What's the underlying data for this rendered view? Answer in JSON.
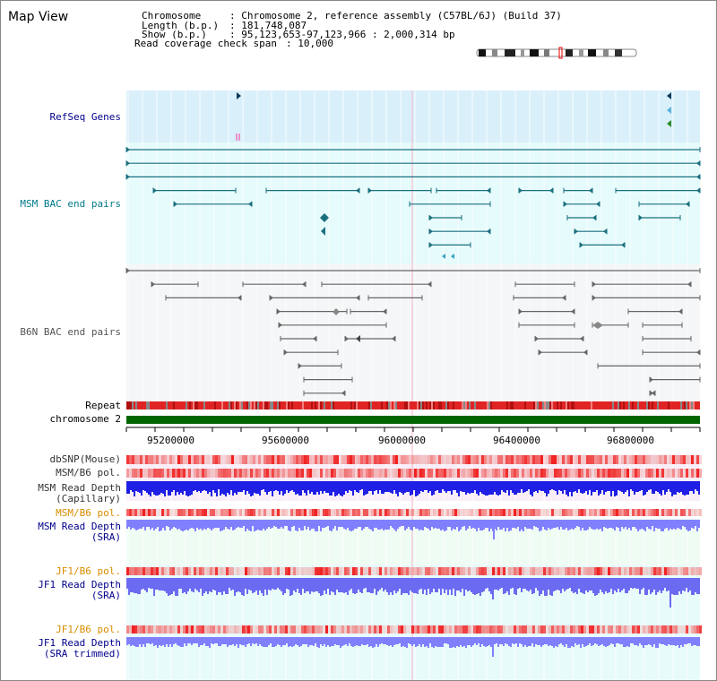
{
  "view": {
    "title": "Map View"
  },
  "info": {
    "chromosome_key": "Chromosome",
    "chromosome_val": ": Chromosome 2, reference assembly (C57BL/6J) (Build 37)",
    "length_key": "Length (b.p.)",
    "length_val": ": 181,748,087",
    "show_key": "Show (b.p.)",
    "show_val": ": 95,123,653-97,123,966 : 2,000,314 bp",
    "span_key": "Read coverage check span",
    "span_val": ": 10,000"
  },
  "tracks": {
    "refseq": "RefSeq Genes",
    "msm_bac": "MSM BAC end pairs",
    "b6n_bac": "B6N BAC end pairs",
    "repeat": "Repeat",
    "chromosome": "chromosome 2",
    "dbsnp": "dbSNP(Mouse)",
    "msm_pol": "MSM/B6 pol.",
    "msm_depth_cap": "MSM Read Depth\n(Capillary)",
    "msm_pol2": "MSM/B6 pol.",
    "msm_depth_sra": "MSM Read Depth\n(SRA)",
    "jf1_pol": "JF1/B6 pol.",
    "jf1_depth_sra": "JF1 Read Depth\n(SRA)",
    "jf1_pol2": "JF1/B6 pol.",
    "jf1_depth_trim": "JF1 Read Depth\n(SRA trimmed)"
  },
  "axis": {
    "ticks": [
      "95200000",
      "95600000",
      "96000000",
      "96400000",
      "96800000"
    ]
  },
  "colors": {
    "msm_label": "#007a8a",
    "b6n_label": "#555555",
    "blue_label": "#00008b",
    "orange_label": "#d98c00",
    "repeat_red": "#e03030",
    "chrom_green": "#006400",
    "msm_band": "#e6fbfb",
    "refseq_band": "#d9f0fa",
    "depth_blue": "#1f1fe6",
    "depth_light": "#8080ff"
  }
}
